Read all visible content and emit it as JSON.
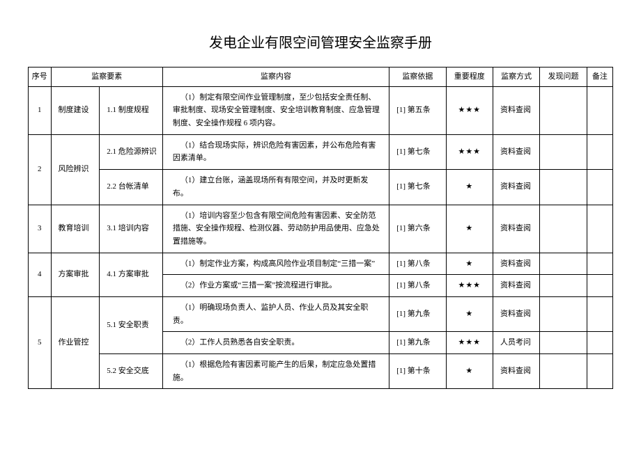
{
  "title": "发电企业有限空间管理安全监察手册",
  "headers": {
    "seq": "序号",
    "element": "监察要素",
    "content": "监察内容",
    "basis": "监察依据",
    "importance": "重要程度",
    "method": "监察方式",
    "problem": "发现问题",
    "note": "备注"
  },
  "stars": {
    "s1": "★",
    "s3": "★★★"
  },
  "rows": [
    {
      "seq": "1",
      "element": "制度建设",
      "subs": [
        {
          "code": "1.1 制度规程",
          "items": [
            {
              "content": "（1）制定有限空间作业管理制度，至少包括安全责任制、审批制度、现场安全管理制度、安全培训教育制度、应急管理制度、安全操作规程 6 项内容。",
              "basis": "[1] 第五条",
              "imp": "s3",
              "method": "资料查阅"
            }
          ]
        }
      ]
    },
    {
      "seq": "2",
      "element": "风险辨识",
      "subs": [
        {
          "code": "2.1 危险源辨识",
          "items": [
            {
              "content": "（1）结合现场实际，辨识危险有害因素，并公布危险有害因素清单。",
              "basis": "[1] 第七条",
              "imp": "s3",
              "method": "资料查阅"
            }
          ]
        },
        {
          "code": "2.2 台帐清单",
          "items": [
            {
              "content": "（1）建立台账，涵盖现场所有有限空间，并及时更新发布。",
              "basis": "[1] 第七条",
              "imp": "s1",
              "method": "资料查阅"
            }
          ]
        }
      ]
    },
    {
      "seq": "3",
      "element": "教育培训",
      "subs": [
        {
          "code": "3.1 培训内容",
          "items": [
            {
              "content": "（1）培训内容至少包含有限空间危险有害因素、安全防范措施、安全操作规程、检测仪器、劳动防护用品使用、应急处置措施等。",
              "basis": "[1] 第六条",
              "imp": "s1",
              "method": "资料查阅"
            }
          ]
        }
      ]
    },
    {
      "seq": "4",
      "element": "方案审批",
      "subs": [
        {
          "code": "4.1 方案审批",
          "items": [
            {
              "content": "（1）制定作业方案，构成高风险作业项目制定“三措一案”",
              "basis": "[1] 第八条",
              "imp": "s1",
              "method": "资料查阅"
            },
            {
              "content": "（2）作业方案或“三措一案”按流程进行审批。",
              "basis": "[1] 第八条",
              "imp": "s3",
              "method": "资料查阅"
            }
          ]
        }
      ]
    },
    {
      "seq": "5",
      "element": "作业管控",
      "subs": [
        {
          "code": "5.1 安全职责",
          "items": [
            {
              "content": "（1）明确现场负责人、监护人员、作业人员及其安全职责。",
              "basis": "[1] 第九条",
              "imp": "s1",
              "method": "资料查阅"
            },
            {
              "content": "（2）工作人员熟悉各自安全职责。",
              "basis": "[1] 第九条",
              "imp": "s3",
              "method": "人员考问"
            }
          ]
        },
        {
          "code": "5.2 安全交底",
          "items": [
            {
              "content": "（1）根据危险有害因素可能产生的后果，制定应急处置措施。",
              "basis": "[1] 第十条",
              "imp": "s1",
              "method": "资料查阅"
            }
          ]
        }
      ]
    }
  ]
}
